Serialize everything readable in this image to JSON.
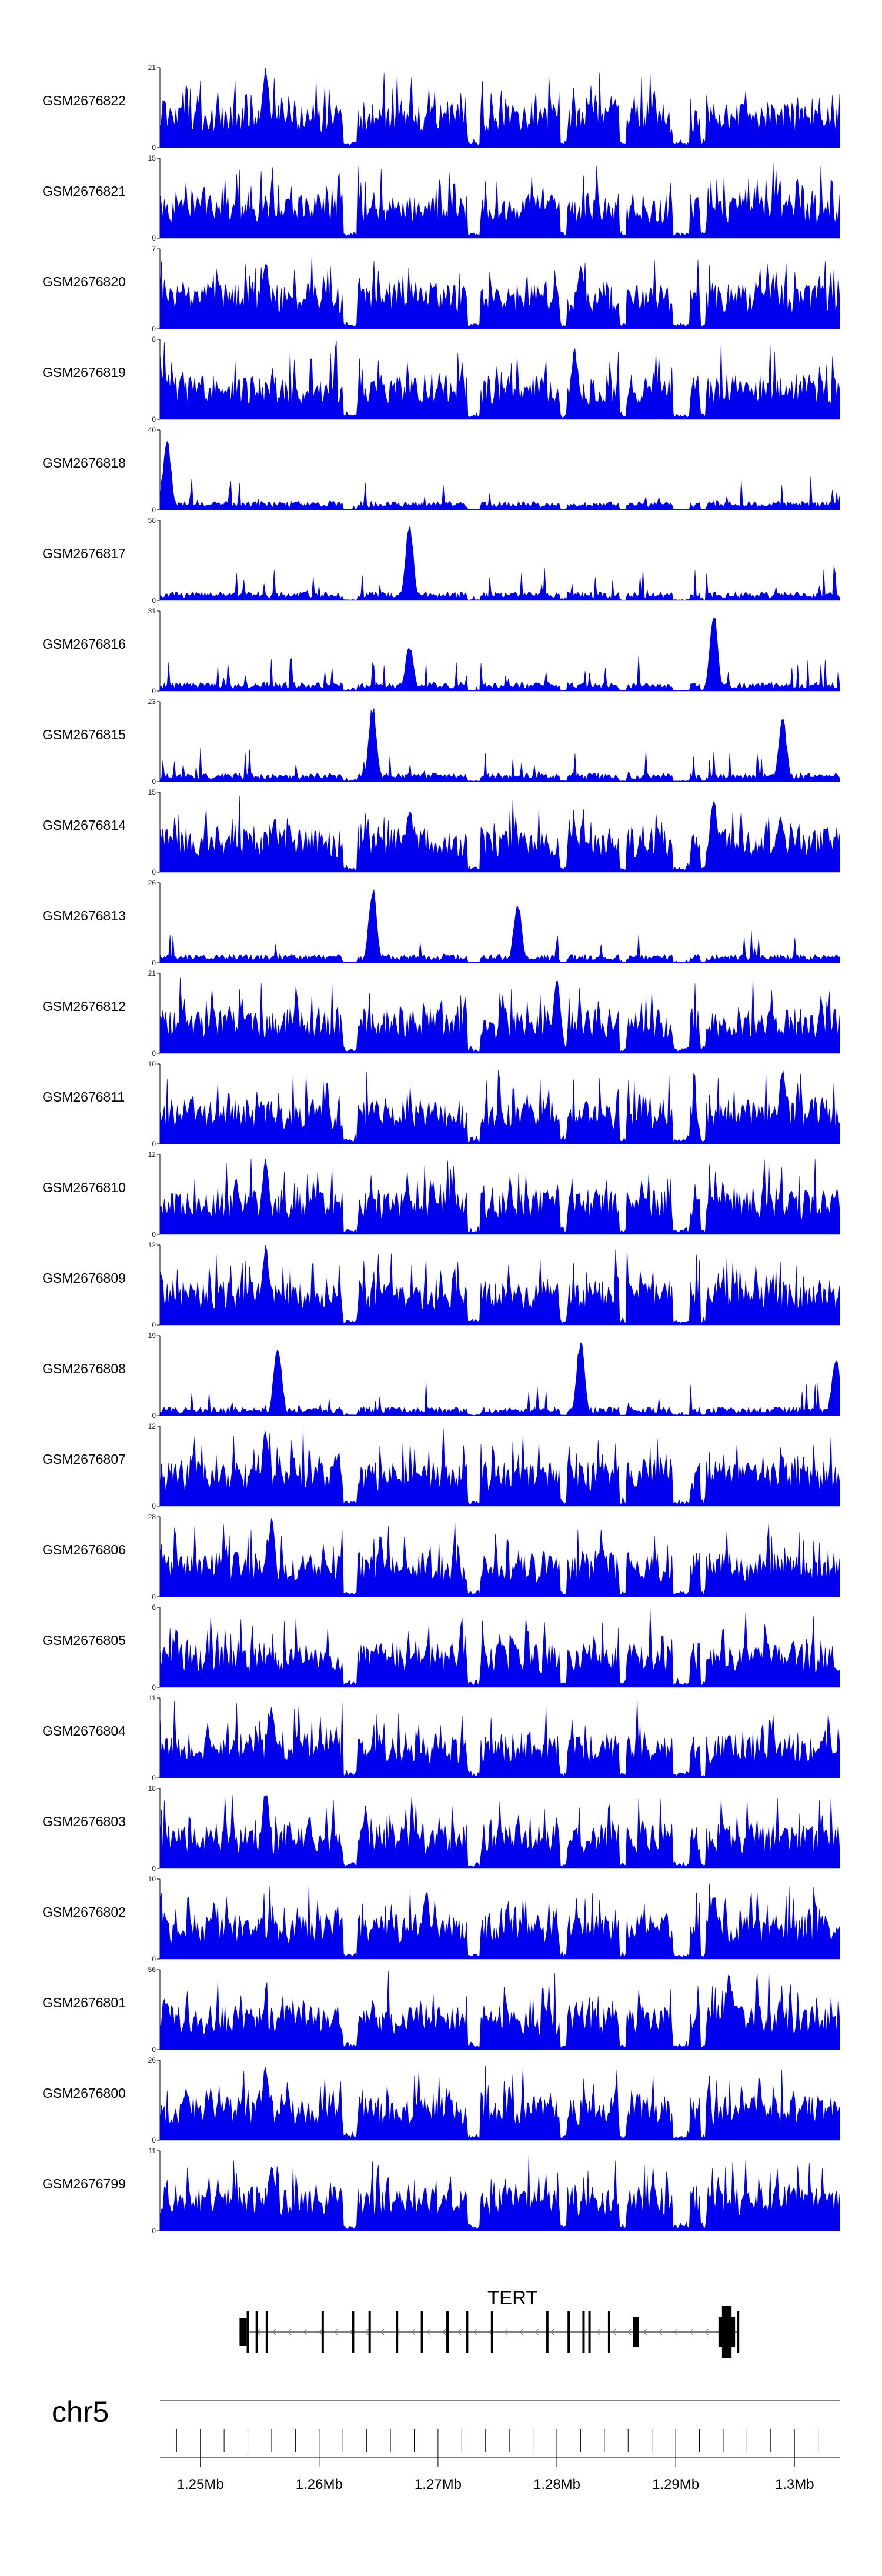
{
  "chart_data": {
    "type": "area",
    "chromosome": "chr5",
    "gene": {
      "name": "TERT",
      "strand": "-",
      "start_mb": 1.2533,
      "end_mb": 1.2953,
      "exons": [
        {
          "start": 1.2533,
          "end": 1.25355,
          "thick": false
        },
        {
          "start": 1.2539,
          "end": 1.25405,
          "thick": false
        },
        {
          "start": 1.25465,
          "end": 1.2548,
          "thick": false
        },
        {
          "start": 1.2555,
          "end": 1.25565,
          "thick": false
        },
        {
          "start": 1.2602,
          "end": 1.26035,
          "thick": false
        },
        {
          "start": 1.26275,
          "end": 1.2629,
          "thick": false
        },
        {
          "start": 1.26415,
          "end": 1.2644,
          "thick": false
        },
        {
          "start": 1.26645,
          "end": 1.2666,
          "thick": false
        },
        {
          "start": 1.26855,
          "end": 1.2687,
          "thick": false
        },
        {
          "start": 1.2707,
          "end": 1.27085,
          "thick": false
        },
        {
          "start": 1.27235,
          "end": 1.2725,
          "thick": false
        },
        {
          "start": 1.27445,
          "end": 1.2746,
          "thick": false
        },
        {
          "start": 1.2791,
          "end": 1.27925,
          "thick": false
        },
        {
          "start": 1.2809,
          "end": 1.28105,
          "thick": false
        },
        {
          "start": 1.28215,
          "end": 1.28245,
          "thick": false
        },
        {
          "start": 1.28265,
          "end": 1.2828,
          "thick": false
        },
        {
          "start": 1.2843,
          "end": 1.28445,
          "thick": false
        },
        {
          "start": 1.2864,
          "end": 1.2869,
          "thick": true
        },
        {
          "start": 1.2936,
          "end": 1.295,
          "thick": true
        },
        {
          "start": 1.29515,
          "end": 1.2953,
          "thick": false
        }
      ]
    },
    "x_axis": {
      "range_mb": [
        1.2466,
        1.3038
      ],
      "major_ticks": [
        1.25,
        1.26,
        1.27,
        1.28,
        1.29,
        1.3
      ],
      "tick_labels": [
        "1.25Mb",
        "1.26Mb",
        "1.27Mb",
        "1.28Mb",
        "1.29Mb",
        "1.3Mb"
      ],
      "minor_tick_step": 0.002
    },
    "series": [
      {
        "name": "GSM2676822",
        "ymax": 21,
        "ymax_label": "21",
        "ymin_label": "0",
        "peaks": [
          [
            1.2555,
            1.0
          ]
        ]
      },
      {
        "name": "GSM2676821",
        "ymax": 15,
        "ymax_label": "15",
        "ymin_label": "0",
        "peaks": []
      },
      {
        "name": "GSM2676820",
        "ymax": 7,
        "ymax_label": "7",
        "ymin_label": "0",
        "peaks": [
          [
            1.2555,
            0.9
          ],
          [
            1.282,
            0.85
          ]
        ]
      },
      {
        "name": "GSM2676819",
        "ymax": 8,
        "ymax_label": "8",
        "ymin_label": "0",
        "peaks": [
          [
            1.2815,
            0.9
          ]
        ]
      },
      {
        "name": "GSM2676818",
        "ymax": 40,
        "ymax_label": "40",
        "ymin_label": "0",
        "peaks": [
          [
            1.2472,
            0.95
          ]
        ]
      },
      {
        "name": "GSM2676817",
        "ymax": 58,
        "ymax_label": "58",
        "ymin_label": "0",
        "peaks": [
          [
            1.2676,
            1.0
          ]
        ]
      },
      {
        "name": "GSM2676816",
        "ymax": 31,
        "ymax_label": "31",
        "ymin_label": "0",
        "peaks": [
          [
            1.2676,
            0.6
          ],
          [
            1.2932,
            1.0
          ]
        ]
      },
      {
        "name": "GSM2676815",
        "ymax": 23,
        "ymax_label": "23",
        "ymin_label": "0",
        "peaks": [
          [
            1.2645,
            1.0
          ],
          [
            1.299,
            0.85
          ]
        ]
      },
      {
        "name": "GSM2676814",
        "ymax": 15,
        "ymax_label": "15",
        "ymin_label": "0",
        "peaks": [
          [
            1.2676,
            0.85
          ],
          [
            1.2932,
            1.0
          ]
        ]
      },
      {
        "name": "GSM2676813",
        "ymax": 26,
        "ymax_label": "26",
        "ymin_label": "0",
        "peaks": [
          [
            1.2645,
            1.0
          ],
          [
            1.2767,
            0.8
          ]
        ]
      },
      {
        "name": "GSM2676812",
        "ymax": 21,
        "ymax_label": "21",
        "ymin_label": "0",
        "peaks": [
          [
            1.28,
            0.95
          ]
        ]
      },
      {
        "name": "GSM2676811",
        "ymax": 10,
        "ymax_label": "10",
        "ymin_label": "0",
        "peaks": [
          [
            1.299,
            0.95
          ]
        ]
      },
      {
        "name": "GSM2676810",
        "ymax": 12,
        "ymax_label": "12",
        "ymin_label": "0",
        "peaks": [
          [
            1.2555,
            1.0
          ]
        ]
      },
      {
        "name": "GSM2676809",
        "ymax": 12,
        "ymax_label": "12",
        "ymin_label": "0",
        "peaks": [
          [
            1.2555,
            1.0
          ]
        ]
      },
      {
        "name": "GSM2676808",
        "ymax": 19,
        "ymax_label": "19",
        "ymin_label": "0",
        "peaks": [
          [
            1.2565,
            0.95
          ],
          [
            1.282,
            1.0
          ],
          [
            1.3035,
            0.8
          ]
        ]
      },
      {
        "name": "GSM2676807",
        "ymax": 12,
        "ymax_label": "12",
        "ymin_label": "0",
        "peaks": [
          [
            1.2555,
            1.0
          ]
        ]
      },
      {
        "name": "GSM2676806",
        "ymax": 28,
        "ymax_label": "28",
        "ymin_label": "0",
        "peaks": [
          [
            1.256,
            1.0
          ]
        ]
      },
      {
        "name": "GSM2676805",
        "ymax": 6,
        "ymax_label": "6",
        "ymin_label": "0",
        "peaks": []
      },
      {
        "name": "GSM2676804",
        "ymax": 11,
        "ymax_label": "11",
        "ymin_label": "0",
        "peaks": [
          [
            1.256,
            0.95
          ]
        ]
      },
      {
        "name": "GSM2676803",
        "ymax": 18,
        "ymax_label": "18",
        "ymin_label": "0",
        "peaks": [
          [
            1.2555,
            1.0
          ]
        ]
      },
      {
        "name": "GSM2676802",
        "ymax": 10,
        "ymax_label": "10",
        "ymin_label": "0",
        "peaks": [
          [
            1.269,
            0.9
          ],
          [
            1.2932,
            0.9
          ]
        ]
      },
      {
        "name": "GSM2676801",
        "ymax": 56,
        "ymax_label": "56",
        "ymin_label": "0",
        "peaks": [
          [
            1.2472,
            0.6
          ],
          [
            1.2945,
            1.0
          ]
        ]
      },
      {
        "name": "GSM2676800",
        "ymax": 26,
        "ymax_label": "26",
        "ymin_label": "0",
        "peaks": [
          [
            1.2555,
            0.95
          ]
        ]
      },
      {
        "name": "GSM2676799",
        "ymax": 11,
        "ymax_label": "11",
        "ymin_label": "0",
        "peaks": [
          [
            1.256,
            0.9
          ]
        ]
      }
    ],
    "colors": {
      "signal": "#0000ee",
      "axis": "#000000",
      "genome_line": "#808080"
    }
  }
}
